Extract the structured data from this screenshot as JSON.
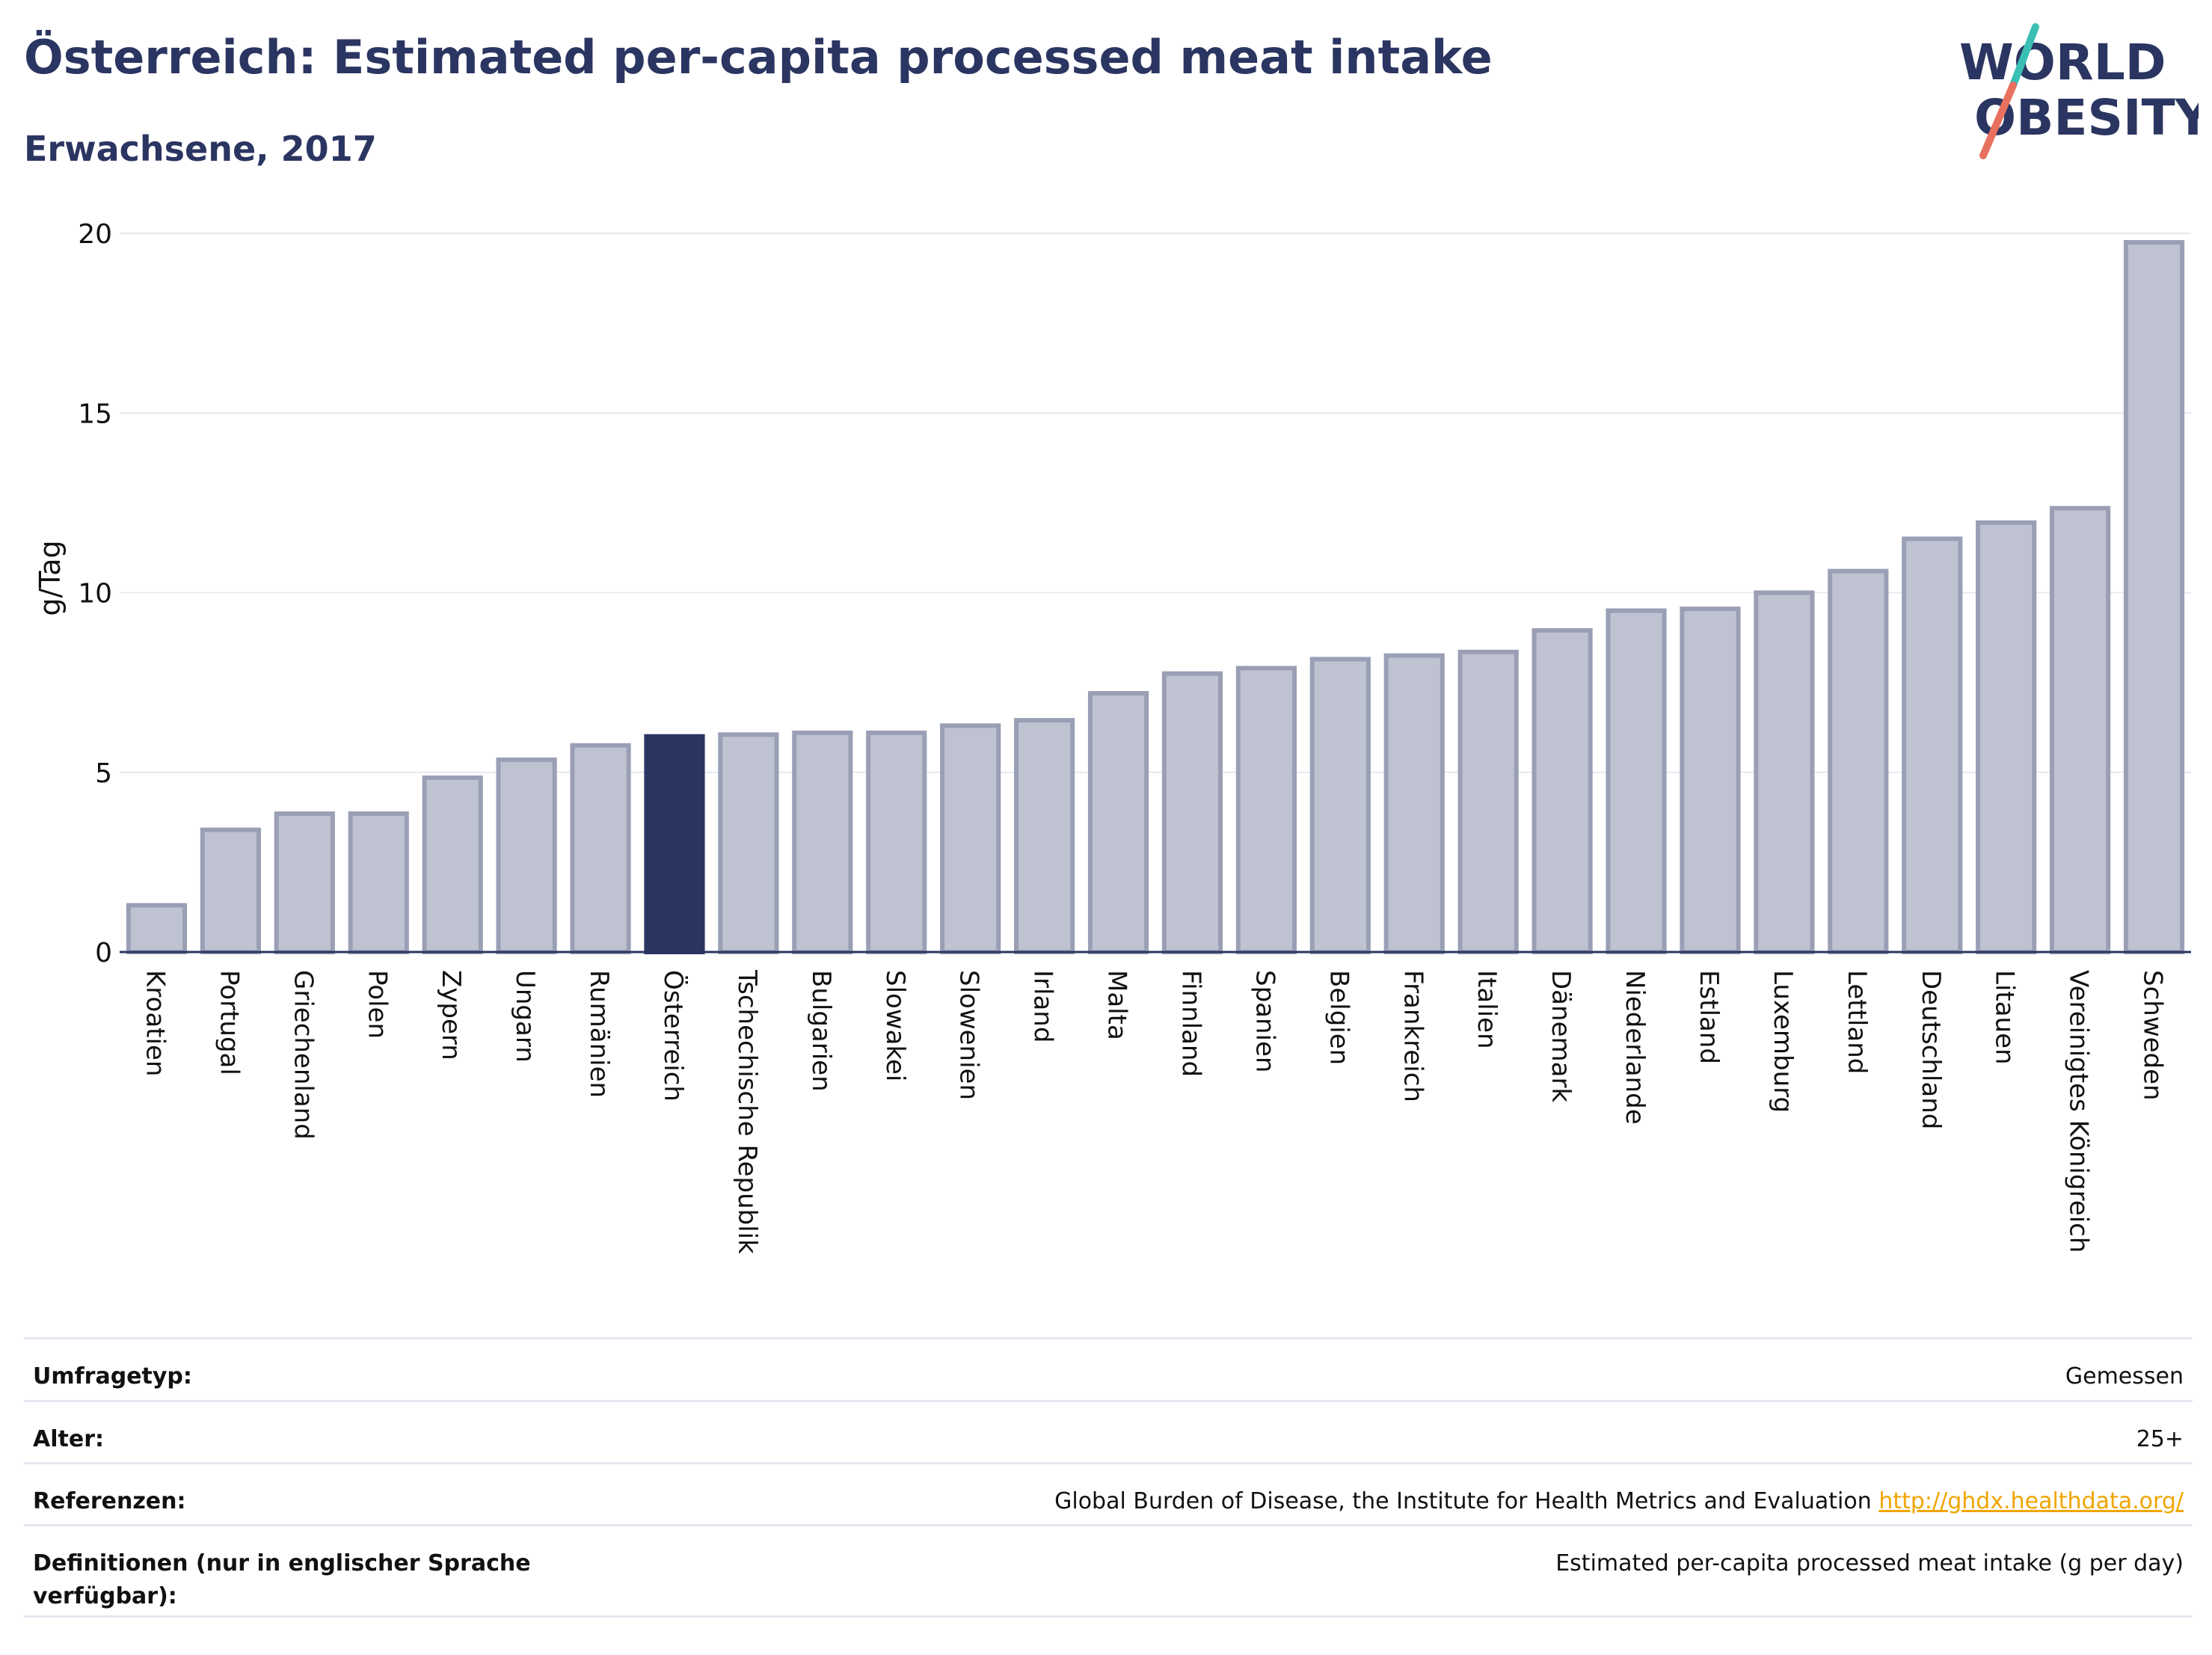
{
  "header": {
    "title": "Österreich: Estimated per-capita processed meat intake",
    "subtitle": "Erwachsene, 2017"
  },
  "logo": {
    "line1": "WORLD",
    "line2": "OBESITY",
    "colors": {
      "text": "#2b3561",
      "slash_top": "#3bbfb4",
      "slash_bottom": "#e8705f"
    }
  },
  "chart_data": {
    "type": "bar",
    "ylabel": "g/Tag",
    "ylim": [
      0,
      20
    ],
    "yticks": [
      0,
      5,
      10,
      15,
      20
    ],
    "highlight": "Österreich",
    "colors": {
      "bar": "#bfc3d1",
      "bar_edge": "#9a9fb5",
      "highlight": "#2b3561",
      "grid": "#e6e8f0",
      "axis": "#2b3561"
    },
    "categories": [
      "Kroatien",
      "Portugal",
      "Griechenland",
      "Polen",
      "Zypern",
      "Ungarn",
      "Rumänien",
      "Österreich",
      "Tschechische Republik",
      "Bulgarien",
      "Slowakei",
      "Slowenien",
      "Irland",
      "Malta",
      "Finnland",
      "Spanien",
      "Belgien",
      "Frankreich",
      "Italien",
      "Dänemark",
      "Niederlande",
      "Estland",
      "Luxemburg",
      "Lettland",
      "Deutschland",
      "Litauen",
      "Vereinigtes Königreich",
      "Schweden"
    ],
    "values": [
      1.3,
      3.4,
      3.85,
      3.85,
      4.85,
      5.35,
      5.75,
      6.0,
      6.05,
      6.1,
      6.1,
      6.3,
      6.45,
      7.2,
      7.75,
      7.9,
      8.15,
      8.25,
      8.35,
      8.95,
      9.5,
      9.55,
      10.0,
      10.6,
      11.5,
      11.95,
      12.35,
      19.75
    ]
  },
  "info": {
    "rows": [
      {
        "label": "Umfragetyp:",
        "value": "Gemessen"
      },
      {
        "label": "Alter:",
        "value": "25+"
      },
      {
        "label": "Referenzen:",
        "value": "Global Burden of Disease, the Institute for Health Metrics and Evaluation",
        "link": "http://ghdx.healthdata.org/"
      },
      {
        "label": "Definitionen (nur in englischer Sprache verfügbar):",
        "value": "Estimated per-capita processed meat intake (g per day)"
      }
    ]
  }
}
